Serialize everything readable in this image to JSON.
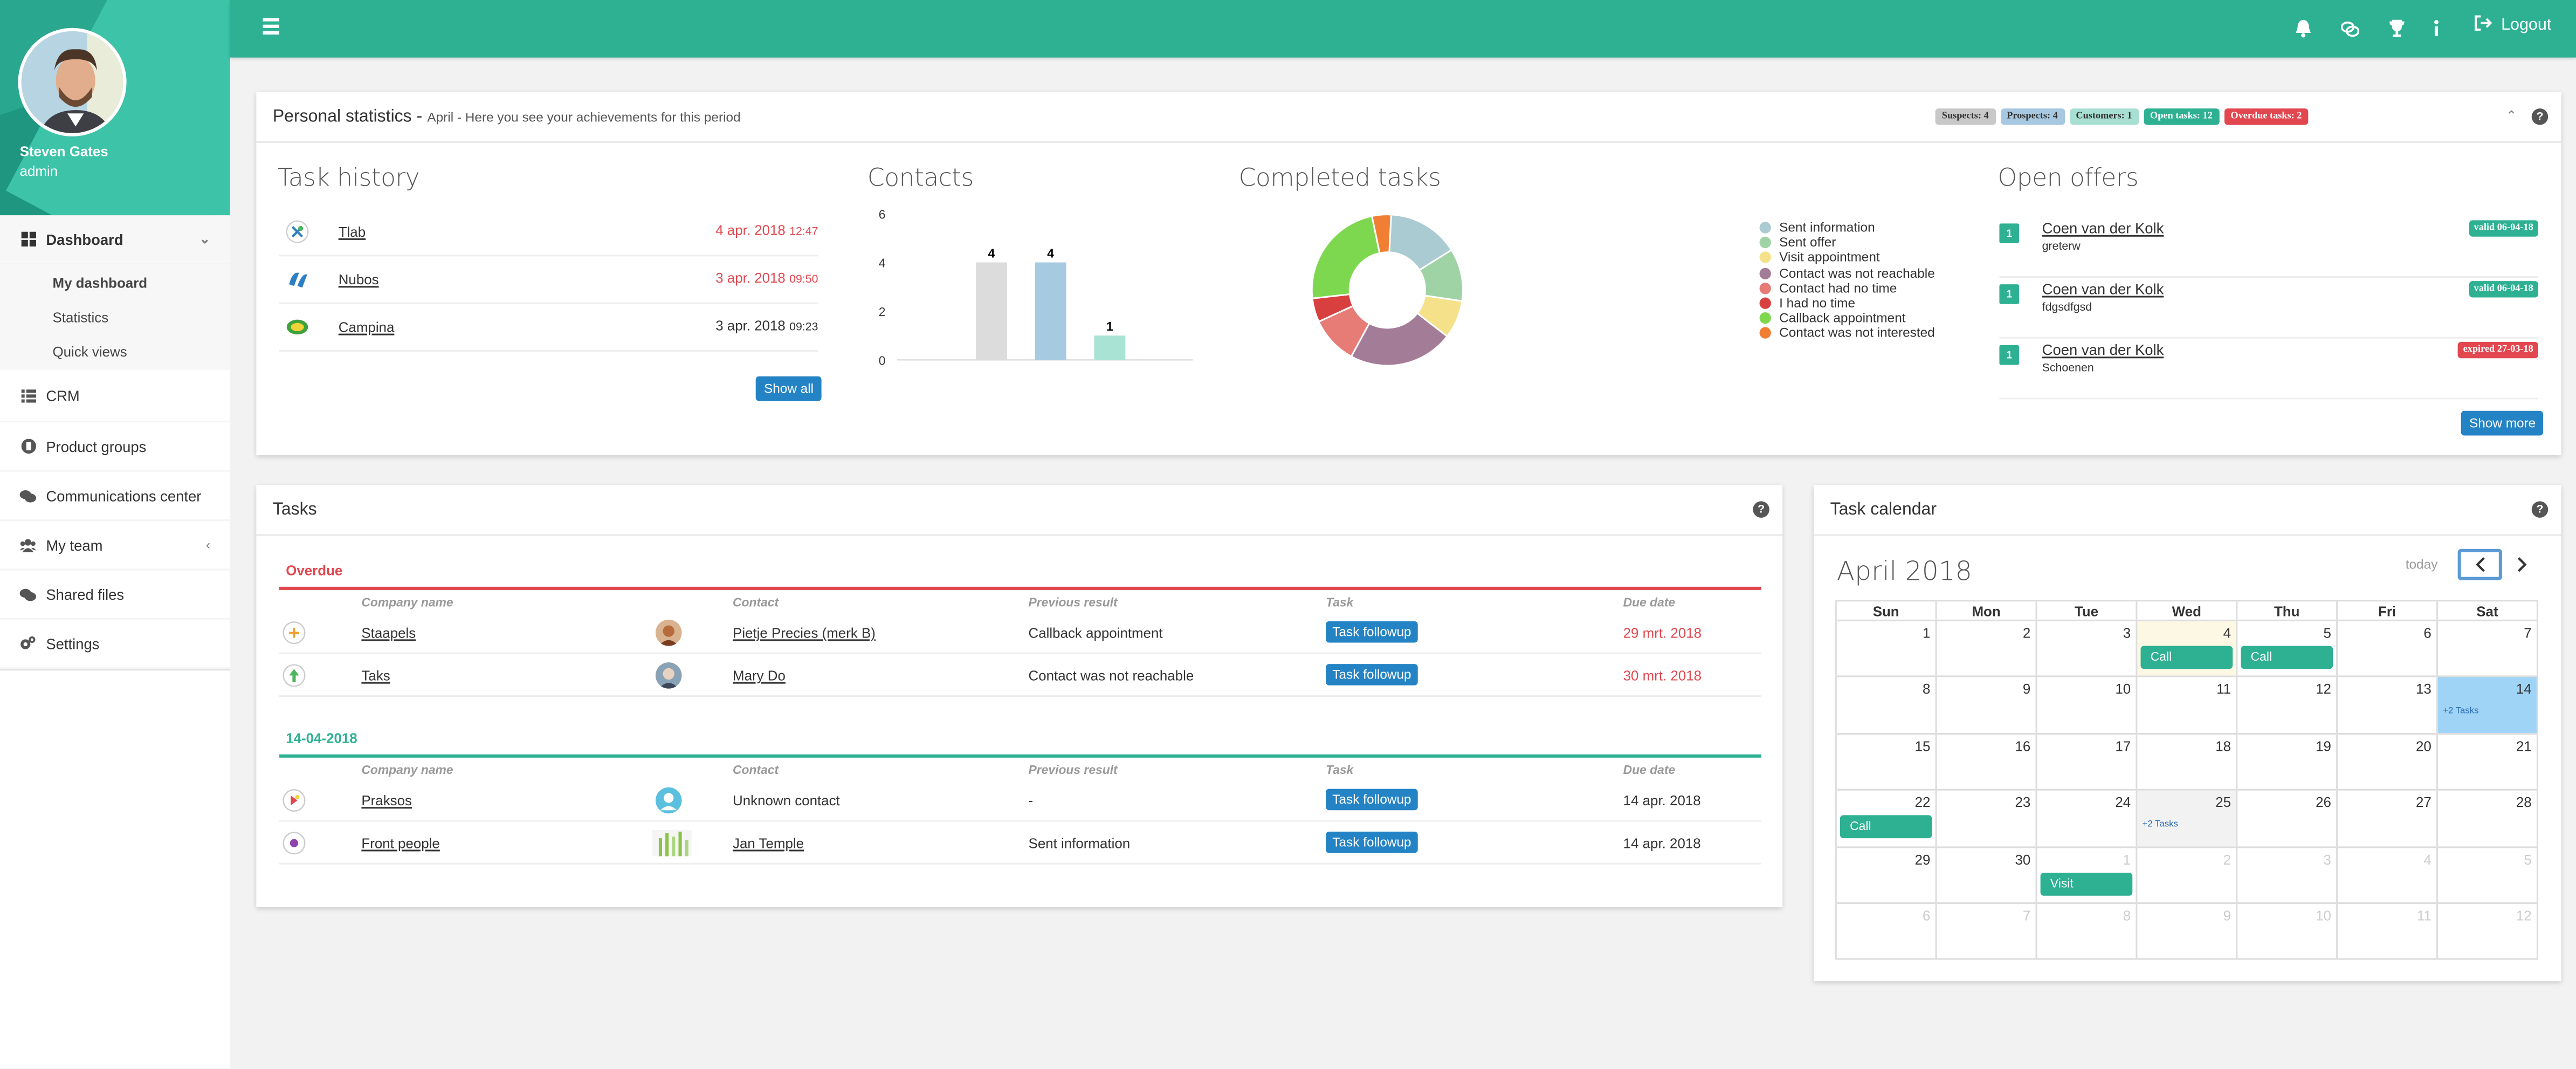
{
  "user": {
    "name": "Steven Gates",
    "role": "admin"
  },
  "sidebar": {
    "items": [
      {
        "label": "Dashboard",
        "icon": "dashboard-icon"
      },
      {
        "label": "CRM",
        "icon": "list-icon"
      },
      {
        "label": "Product groups",
        "icon": "product-icon"
      },
      {
        "label": "Communications center",
        "icon": "comments-icon"
      },
      {
        "label": "My team",
        "icon": "users-icon"
      },
      {
        "label": "Shared files",
        "icon": "share-icon"
      },
      {
        "label": "Settings",
        "icon": "cogs-icon"
      }
    ],
    "sub_items": [
      {
        "label": "My dashboard"
      },
      {
        "label": "Statistics"
      },
      {
        "label": "Quick views"
      }
    ]
  },
  "topbar": {
    "logout_label": "Logout"
  },
  "stats": {
    "title": "Personal statistics -",
    "subtitle": "April - Here you see your achievements for this period",
    "badges": [
      {
        "label": "Suspects: 4",
        "color": "#c8c8c8"
      },
      {
        "label": "Prospects: 4",
        "color": "#a7c8e0"
      },
      {
        "label": "Customers: 1",
        "color": "#a7e0d2"
      },
      {
        "label": "Open tasks: 12",
        "color": "#2eb093"
      },
      {
        "label": "Overdue tasks: 2",
        "color": "#e2474f"
      }
    ]
  },
  "task_history": {
    "title": "Task history",
    "rows": [
      {
        "name": "Tlab",
        "date": "4 apr. 2018",
        "time": "12:47",
        "overdue": true
      },
      {
        "name": "Nubos",
        "date": "3 apr. 2018",
        "time": "09:50",
        "overdue": true
      },
      {
        "name": "Campina",
        "date": "3 apr. 2018",
        "time": "09:23",
        "overdue": false
      }
    ],
    "show_all_label": "Show all"
  },
  "contacts": {
    "title": "Contacts"
  },
  "chart_data": [
    {
      "type": "bar",
      "title": "Contacts",
      "categories": [
        "",
        "",
        ""
      ],
      "values": [
        4,
        4,
        1
      ],
      "colors": [
        "#dcdcdc",
        "#a6cbe0",
        "#a8e3d4"
      ],
      "yticks": [
        "0",
        "2",
        "4",
        "6"
      ],
      "ylim": [
        0,
        6
      ],
      "labels": [
        "4",
        "4",
        "1"
      ]
    },
    {
      "type": "pie",
      "title": "Completed tasks",
      "labels": [
        "Sent information",
        "Sent offer",
        "Visit appointment",
        "Contact was not reachable",
        "Contact had no time",
        "I had no time",
        "Callback appointment",
        "Contact was not interested"
      ],
      "values": [
        15,
        11,
        8,
        22,
        10,
        5,
        23,
        4
      ],
      "colors": [
        "#a9cbd1",
        "#9fd3a5",
        "#f4e18a",
        "#a37c98",
        "#e77b76",
        "#d84040",
        "#7ed84f",
        "#f07e33"
      ]
    }
  ],
  "completed": {
    "title": "Completed tasks"
  },
  "offers": {
    "title": "Open offers",
    "rows": [
      {
        "num": "1",
        "name": "Coen van der Kolk",
        "sub": "greterw",
        "status": "valid 06-04-18",
        "status_color": "#2eb093"
      },
      {
        "num": "1",
        "name": "Coen van der Kolk",
        "sub": "fdgsdfgsd",
        "status": "valid 06-04-18",
        "status_color": "#2eb093"
      },
      {
        "num": "1",
        "name": "Coen van der Kolk",
        "sub": "Schoenen",
        "status": "expired 27-03-18",
        "status_color": "#e2474f"
      }
    ],
    "show_more_label": "Show more"
  },
  "tasks": {
    "title": "Tasks",
    "columns": [
      "Company name",
      "Contact",
      "Previous result",
      "Task",
      "Due date"
    ],
    "groups": [
      {
        "title": "Overdue",
        "color": "#e2474f",
        "rows": [
          {
            "company": "Staapels",
            "contact": "Pietje Precies (merk B)",
            "prev": "Callback appointment",
            "task": "Task followup",
            "due": "29 mrt. 2018"
          },
          {
            "company": "Taks",
            "contact": "Mary Do",
            "prev": "Contact was not reachable",
            "task": "Task followup",
            "due": "30 mrt. 2018"
          }
        ]
      },
      {
        "title": "14-04-2018",
        "color": "#2eb093",
        "rows": [
          {
            "company": "Praksos",
            "contact": "Unknown contact",
            "prev": "-",
            "task": "Task followup",
            "due": "14 apr. 2018"
          },
          {
            "company": "Front people",
            "contact": "Jan Temple",
            "prev": "Sent information",
            "task": "Task followup",
            "due": "14 apr. 2018"
          }
        ]
      }
    ]
  },
  "calendar": {
    "title": "Task calendar",
    "month": "April 2018",
    "today_label": "today",
    "days": [
      "Sun",
      "Mon",
      "Tue",
      "Wed",
      "Thu",
      "Fri",
      "Sat"
    ],
    "weeks": [
      [
        "1",
        "2",
        "3",
        "4",
        "5",
        "6",
        "7"
      ],
      [
        "8",
        "9",
        "10",
        "11",
        "12",
        "13",
        "14"
      ],
      [
        "15",
        "16",
        "17",
        "18",
        "19",
        "20",
        "21"
      ],
      [
        "22",
        "23",
        "24",
        "25",
        "26",
        "27",
        "28"
      ],
      [
        "29",
        "30",
        "1",
        "2",
        "3",
        "4",
        "5"
      ],
      [
        "6",
        "7",
        "8",
        "9",
        "10",
        "11",
        "12"
      ]
    ],
    "events": {
      "call": "Call",
      "visit": "Visit",
      "more": "+2 Tasks"
    }
  }
}
